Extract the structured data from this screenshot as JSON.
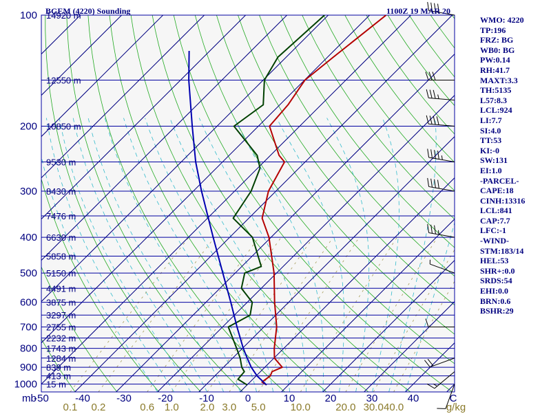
{
  "header": {
    "station_title": "BGEM (4220) Sounding",
    "time_title": "1100Z 19 MAR 20"
  },
  "chart_data": {
    "type": "skew-t",
    "pressure_axis_unit": "mb",
    "pressure_levels": [
      100,
      200,
      300,
      400,
      500,
      600,
      700,
      800,
      900,
      1000
    ],
    "plim": [
      100,
      1050
    ],
    "temperature_ticks": [
      -50,
      -40,
      -30,
      -20,
      -10,
      0,
      10,
      20,
      30,
      40
    ],
    "temperature_unit": "C",
    "mixing_ratio_ticks": [
      "0.1",
      "0.2",
      "0.6",
      "1.0",
      "2.0",
      "3.0",
      "5.0",
      "10.0",
      "20.0",
      "30.0",
      "40.0"
    ],
    "mixing_ratio_values": [
      0.1,
      0.2,
      0.6,
      1.0,
      2.0,
      3.0,
      5.0,
      10.0,
      20.0,
      30.0,
      40.0
    ],
    "mixing_ratio_unit": "g/kg",
    "height_labels": [
      {
        "p": 100,
        "label": "14920 m"
      },
      {
        "p": 150,
        "label": "12550 m"
      },
      {
        "p": 200,
        "label": "10850 m"
      },
      {
        "p": 250,
        "label": "9530 m"
      },
      {
        "p": 300,
        "label": "8430 m"
      },
      {
        "p": 350,
        "label": "7476 m"
      },
      {
        "p": 400,
        "label": "6630 m"
      },
      {
        "p": 450,
        "label": "5858 m"
      },
      {
        "p": 500,
        "label": "5150 m"
      },
      {
        "p": 550,
        "label": "4491 m"
      },
      {
        "p": 600,
        "label": "3875 m"
      },
      {
        "p": 650,
        "label": "3297 m"
      },
      {
        "p": 700,
        "label": "2755 m"
      },
      {
        "p": 750,
        "label": "2232 m"
      },
      {
        "p": 800,
        "label": "1743 m"
      },
      {
        "p": 850,
        "label": "1284 m"
      },
      {
        "p": 900,
        "label": "839 m"
      },
      {
        "p": 950,
        "label": "413 m"
      },
      {
        "p": 1000,
        "label": "15 m"
      }
    ],
    "series": [
      {
        "color": "#b40000",
        "points": [
          [
            1005,
            4.7
          ],
          [
            987,
            2.9
          ],
          [
            950,
            3.4
          ],
          [
            925,
            2.8
          ],
          [
            900,
            4.2
          ],
          [
            850,
            0.1
          ],
          [
            800,
            -2.3
          ],
          [
            700,
            -6.9
          ],
          [
            600,
            -13.4
          ],
          [
            500,
            -20.6
          ],
          [
            400,
            -30.5
          ],
          [
            355,
            -36.8
          ],
          [
            300,
            -41.8
          ],
          [
            250,
            -45.0
          ],
          [
            240,
            -47.9
          ],
          [
            200,
            -57.3
          ],
          [
            175,
            -58.0
          ],
          [
            150,
            -59.9
          ],
          [
            130,
            -58.6
          ],
          [
            120,
            -57.8
          ],
          [
            100,
            -56.0
          ]
        ]
      },
      {
        "color": "#004000",
        "points": [
          [
            1005,
            0.0
          ],
          [
            970,
            -3.6
          ],
          [
            925,
            -3.9
          ],
          [
            900,
            -5.6
          ],
          [
            850,
            -8.2
          ],
          [
            800,
            -11.4
          ],
          [
            700,
            -18.6
          ],
          [
            650,
            -16.2
          ],
          [
            600,
            -18.8
          ],
          [
            550,
            -24.8
          ],
          [
            500,
            -27.7
          ],
          [
            480,
            -25.3
          ],
          [
            400,
            -34.5
          ],
          [
            355,
            -43.8
          ],
          [
            300,
            -46.0
          ],
          [
            260,
            -49.4
          ],
          [
            240,
            -53.2
          ],
          [
            200,
            -65.9
          ],
          [
            175,
            -64.0
          ],
          [
            150,
            -69.7
          ],
          [
            130,
            -72.0
          ],
          [
            100,
            -70.9
          ]
        ]
      },
      {
        "color": "#0000b0",
        "points": [
          [
            1005,
            4.7
          ],
          [
            950,
            0.2
          ],
          [
            900,
            -3.3
          ],
          [
            850,
            -6.5
          ],
          [
            800,
            -9.8
          ],
          [
            700,
            -16.5
          ],
          [
            600,
            -24.0
          ],
          [
            500,
            -33.0
          ],
          [
            400,
            -44.0
          ],
          [
            300,
            -58.0
          ],
          [
            250,
            -66.5
          ],
          [
            200,
            -76.0
          ],
          [
            150,
            -88.0
          ],
          [
            125,
            -95.0
          ]
        ]
      }
    ],
    "wind_barbs": [
      {
        "p": 1000,
        "speed": 10,
        "dir": 200
      },
      {
        "p": 925,
        "speed": 15,
        "dir": 230
      },
      {
        "p": 850,
        "speed": 20,
        "dir": 250
      },
      {
        "p": 700,
        "speed": 10,
        "dir": 270
      },
      {
        "p": 500,
        "speed": 5,
        "dir": 290
      },
      {
        "p": 400,
        "speed": 35,
        "dir": 280
      },
      {
        "p": 300,
        "speed": 40,
        "dir": 280
      },
      {
        "p": 250,
        "speed": 45,
        "dir": 280
      },
      {
        "p": 200,
        "speed": 40,
        "dir": 275
      },
      {
        "p": 170,
        "speed": 35,
        "dir": 275
      },
      {
        "p": 150,
        "speed": 30,
        "dir": 270
      },
      {
        "p": 100,
        "speed": 40,
        "dir": 280
      }
    ]
  },
  "indices": [
    "WMO: 4220",
    "TP:196",
    "FRZ: BG",
    "WB0: BG",
    "PW:0.14",
    "RH:41.7",
    "MAXT:3.3",
    "TH:5135",
    "L57:8.3",
    "LCL:924",
    "LI:7.7",
    "SI:4.0",
    "TT:53",
    "KI:-0",
    "SW:131",
    "EI:1.0",
    "-PARCEL-",
    "CAPE:18",
    "CINH:13316",
    "LCL:841",
    "CAP:7.7",
    "LFC:-1",
    "-WIND-",
    "STM:183/14",
    "HEL:53",
    "SHR+:0.0",
    "SRDS:54",
    "EHI:0.0",
    "BRN:0.6",
    "BSHR:29"
  ]
}
